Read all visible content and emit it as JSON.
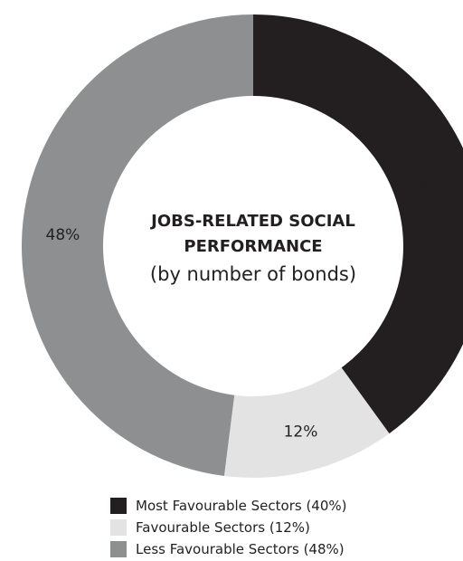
{
  "chart_data": {
    "type": "pie",
    "donut": true,
    "title_lines": [
      "JOBS-RELATED SOCIAL",
      "PERFORMANCE"
    ],
    "subtitle": "(by number of bonds)",
    "slices": [
      {
        "label": "Most Favourable Sectors (40%)",
        "value": 40,
        "value_label": "40%",
        "color": "#231f20"
      },
      {
        "label": "Favourable Sectors (12%)",
        "value": 12,
        "value_label": "12%",
        "color": "#e3e3e3"
      },
      {
        "label": "Less Favourable Sectors (48%)",
        "value": 48,
        "value_label": "48%",
        "color": "#8e8f91"
      }
    ],
    "start": "12 o'clock",
    "direction": "clockwise",
    "legend_position": "bottom"
  }
}
